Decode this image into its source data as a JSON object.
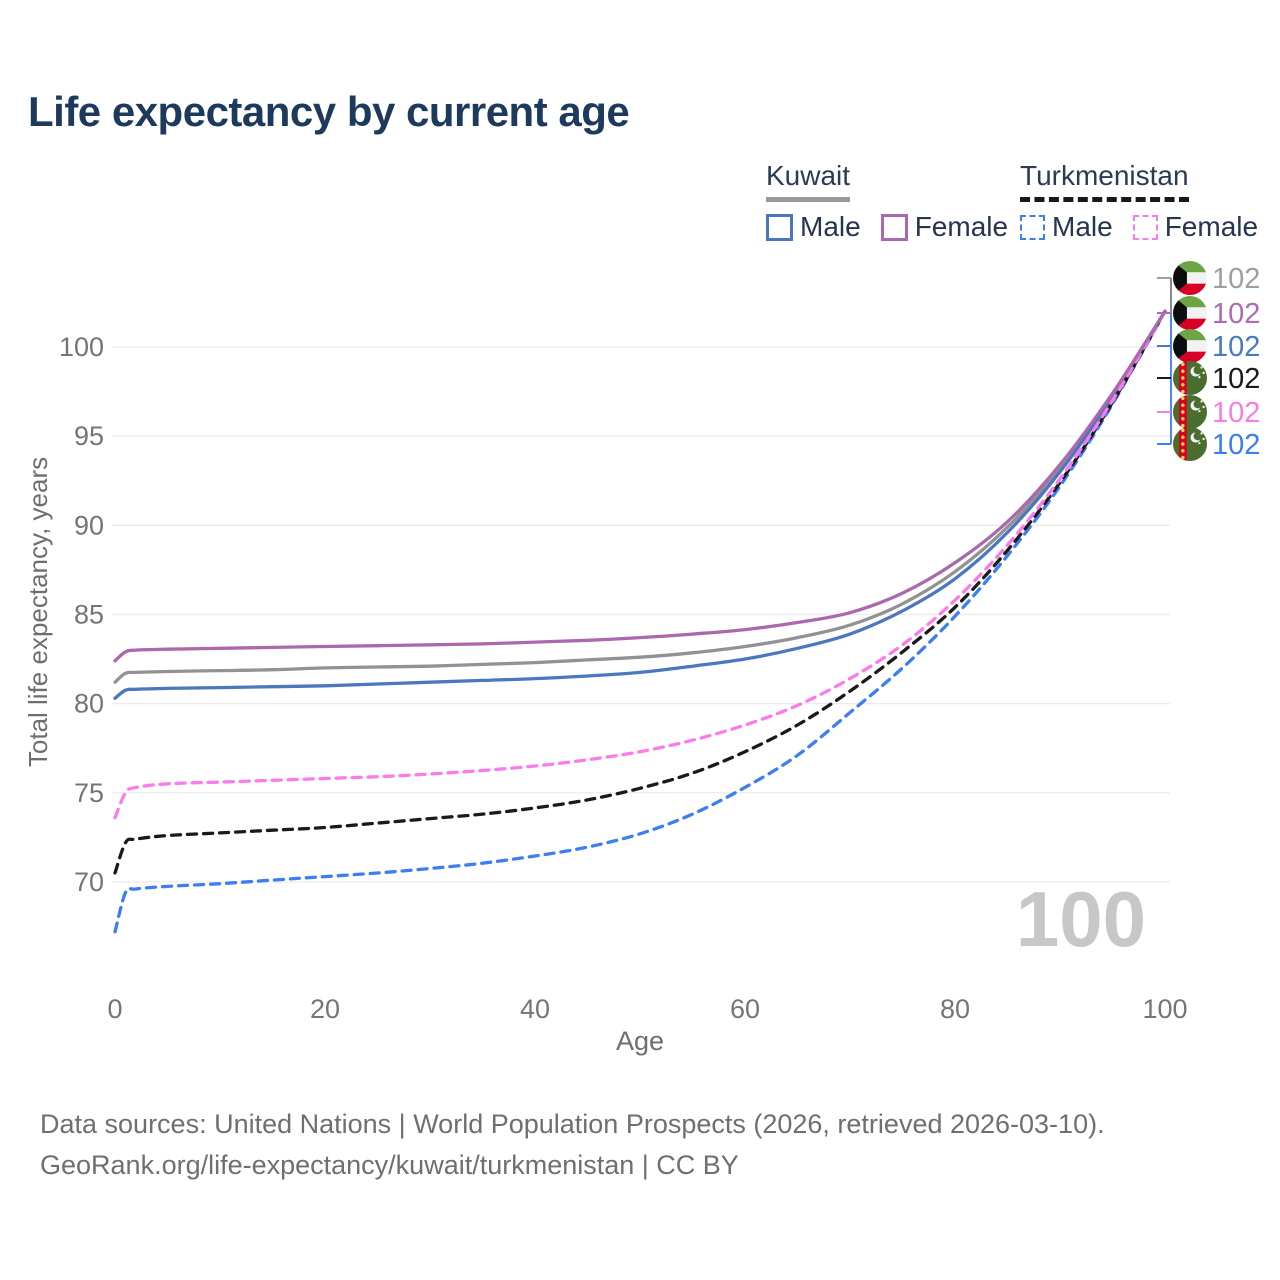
{
  "title": "Life expectancy by current age",
  "legend": {
    "groups": [
      {
        "name": "Kuwait",
        "line_style": "solid",
        "underline_color": "#9a9a9a",
        "items": [
          {
            "label": "Male",
            "color": "#4a77bd"
          },
          {
            "label": "Female",
            "color": "#aa68ad"
          }
        ]
      },
      {
        "name": "Turkmenistan",
        "line_style": "dashed",
        "underline_color": "#17181c",
        "items": [
          {
            "label": "Male",
            "color": "#3d7ff1"
          },
          {
            "label": "Female",
            "color": "#fb7be8"
          }
        ]
      }
    ]
  },
  "watermark": "100",
  "footer": {
    "line1": "Data sources: United Nations | World Population Prospects (2026, retrieved 2026-03-10).",
    "line2": "GeoRank.org/life-expectancy/kuwait/turkmenistan | CC BY"
  },
  "chart_data": {
    "type": "line",
    "title": "Life expectancy by current age",
    "xlabel": "Age",
    "ylabel": "Total life expectancy, years",
    "x_ticks": [
      0,
      20,
      40,
      60,
      80,
      100
    ],
    "y_ticks": [
      100,
      95,
      90,
      85,
      80,
      75,
      70
    ],
    "xlim": [
      0,
      100
    ],
    "ylim": [
      66,
      103
    ],
    "grid": "horizontal",
    "grid_color": "#ebebeb",
    "axis_text_color": "#757575",
    "x": [
      0,
      1,
      2,
      5,
      10,
      15,
      20,
      25,
      30,
      35,
      40,
      45,
      50,
      55,
      60,
      65,
      70,
      75,
      80,
      85,
      90,
      95,
      100
    ],
    "series": [
      {
        "id": "kuwait-total",
        "name": "Kuwait Total",
        "country": "Kuwait",
        "color": "#929292",
        "dash": "solid",
        "values": [
          81.2,
          81.7,
          81.75,
          81.8,
          81.85,
          81.9,
          82.0,
          82.05,
          82.1,
          82.2,
          82.3,
          82.45,
          82.6,
          82.85,
          83.2,
          83.7,
          84.4,
          85.6,
          87.4,
          89.9,
          93.2,
          97.3,
          102
        ]
      },
      {
        "id": "kuwait-male",
        "name": "Kuwait Male",
        "country": "Kuwait",
        "color": "#4a77bd",
        "dash": "solid",
        "values": [
          80.3,
          80.75,
          80.8,
          80.85,
          80.9,
          80.95,
          81.0,
          81.1,
          81.2,
          81.3,
          81.4,
          81.55,
          81.75,
          82.1,
          82.5,
          83.1,
          83.9,
          85.2,
          87.0,
          89.6,
          93.0,
          97.2,
          102
        ]
      },
      {
        "id": "turkmenistan-male",
        "name": "Turkmenistan Male",
        "country": "Turkmenistan",
        "color": "#3d7ff1",
        "dash": "dashed",
        "values": [
          67.2,
          69.4,
          69.6,
          69.75,
          69.9,
          70.1,
          70.3,
          70.5,
          70.75,
          71.05,
          71.45,
          71.95,
          72.7,
          73.8,
          75.3,
          77.1,
          79.5,
          82.0,
          84.9,
          88.3,
          92.2,
          96.8,
          102
        ]
      },
      {
        "id": "turkmenistan-total",
        "name": "Turkmenistan Total",
        "country": "Turkmenistan",
        "color": "#1a1a1a",
        "dash": "dashed",
        "values": [
          70.5,
          72.2,
          72.4,
          72.6,
          72.75,
          72.9,
          73.05,
          73.3,
          73.55,
          73.8,
          74.15,
          74.6,
          75.25,
          76.1,
          77.3,
          78.8,
          80.7,
          82.9,
          85.4,
          88.6,
          92.4,
          96.9,
          102
        ]
      },
      {
        "id": "turkmenistan-female",
        "name": "Turkmenistan Female",
        "country": "Turkmenistan",
        "color": "#fb7be8",
        "dash": "dashed",
        "values": [
          73.6,
          75.0,
          75.3,
          75.5,
          75.6,
          75.7,
          75.8,
          75.9,
          76.05,
          76.25,
          76.5,
          76.85,
          77.3,
          77.95,
          78.8,
          79.9,
          81.4,
          83.3,
          85.8,
          88.9,
          92.6,
          97.0,
          102
        ]
      },
      {
        "id": "kuwait-female",
        "name": "Kuwait Female",
        "country": "Kuwait",
        "color": "#aa68ad",
        "dash": "solid",
        "values": [
          82.4,
          82.9,
          83.0,
          83.05,
          83.1,
          83.15,
          83.2,
          83.25,
          83.3,
          83.35,
          83.45,
          83.55,
          83.7,
          83.9,
          84.15,
          84.55,
          85.1,
          86.2,
          87.9,
          90.2,
          93.4,
          97.4,
          102
        ]
      }
    ],
    "end_labels": [
      {
        "country": "Kuwait",
        "series": "Total",
        "value": "102",
        "color": "#9e9e9e"
      },
      {
        "country": "Kuwait",
        "series": "Female",
        "value": "102",
        "color": "#ae6cb0"
      },
      {
        "country": "Kuwait",
        "series": "Male",
        "value": "102",
        "color": "#4a79c2"
      },
      {
        "country": "Turkmenistan",
        "series": "Total",
        "value": "102",
        "color": "#1a1a1a"
      },
      {
        "country": "Turkmenistan",
        "series": "Female",
        "value": "102",
        "color": "#f97ce3"
      },
      {
        "country": "Turkmenistan",
        "series": "Male",
        "value": "102",
        "color": "#3b7df2"
      }
    ],
    "legend_position": "top-right"
  }
}
